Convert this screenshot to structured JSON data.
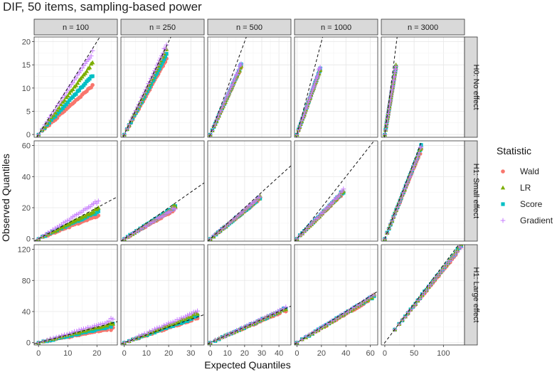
{
  "chart_data": {
    "type": "scatter",
    "title": "DIF, 50 items, sampling-based power",
    "xlabel": "Expected Quantiles",
    "ylabel": "Observed Quantiles",
    "legend": {
      "title": "Statistic",
      "position": "right",
      "entries": [
        {
          "name": "Wald",
          "color": "#F8766D",
          "shape": "circle"
        },
        {
          "name": "LR",
          "color": "#7CAE00",
          "shape": "triangle"
        },
        {
          "name": "Score",
          "color": "#00BFC4",
          "shape": "square"
        },
        {
          "name": "Gradient",
          "color": "#C77CFF",
          "shape": "plus"
        }
      ]
    },
    "columns": [
      {
        "label": "n = 100",
        "xlim": [
          -1.5,
          27
        ],
        "xticks": [
          0,
          10,
          20
        ],
        "ylims": [
          [
            -0.6,
            21
          ],
          [
            -1.5,
            63
          ],
          [
            -3,
            126
          ]
        ],
        "xmax": [
          18.5,
          20.5,
          25.5
        ],
        "wald_slope": [
          0.57,
          0.74,
          0.72
        ],
        "lr_slope": [
          0.83,
          0.92,
          0.96
        ],
        "score_slope": [
          0.69,
          0.86,
          0.84
        ],
        "grad_slope": [
          0.95,
          1.18,
          1.12
        ]
      },
      {
        "label": "n = 250",
        "xlim": [
          -1.5,
          36
        ],
        "xticks": [
          0,
          10,
          20,
          30
        ],
        "ylims": [
          [
            -0.6,
            21
          ],
          [
            -1.5,
            63
          ],
          [
            -3,
            126
          ]
        ],
        "xmax": [
          19.0,
          23.0,
          33.0
        ],
        "wald_slope": [
          0.85,
          0.82,
          0.95
        ],
        "lr_slope": [
          0.97,
          0.88,
          1.12
        ],
        "score_slope": [
          0.9,
          0.9,
          1.0
        ],
        "grad_slope": [
          1.0,
          0.85,
          1.22
        ]
      },
      {
        "label": "n = 500",
        "xlim": [
          -1.5,
          47
        ],
        "xticks": [
          0,
          10,
          20,
          30,
          40
        ],
        "ylims": [
          [
            -0.6,
            21
          ],
          [
            -1.5,
            63
          ],
          [
            -3,
            126
          ]
        ],
        "xmax": [
          18.0,
          29.0,
          44.0
        ],
        "wald_slope": [
          0.8,
          0.88,
          0.94
        ],
        "lr_slope": [
          0.82,
          0.92,
          1.0
        ],
        "score_slope": [
          0.82,
          0.9,
          0.98
        ],
        "grad_slope": [
          0.84,
          0.93,
          1.02
        ]
      },
      {
        "label": "n = 1000",
        "xlim": [
          -2,
          66
        ],
        "xticks": [
          0,
          20,
          40,
          60
        ],
        "ylims": [
          [
            -0.6,
            21
          ],
          [
            -1.5,
            63
          ],
          [
            -3,
            126
          ]
        ],
        "xmax": [
          19.0,
          38.0,
          63.0
        ],
        "wald_slope": [
          0.73,
          0.78,
          0.92
        ],
        "lr_slope": [
          0.74,
          0.8,
          0.95
        ],
        "score_slope": [
          0.74,
          0.8,
          0.95
        ],
        "grad_slope": [
          0.75,
          0.81,
          0.97
        ]
      },
      {
        "label": "n = 3000",
        "xlim": [
          -6,
          136
        ],
        "xticks": [
          0,
          50,
          100
        ],
        "ylims": [
          [
            -0.6,
            21
          ],
          [
            -1.5,
            63
          ],
          [
            -3,
            126
          ]
        ],
        "xmin": [
          0,
          0,
          17
        ],
        "xmax": [
          19.0,
          62.0,
          130.0
        ],
        "wald_slope": [
          0.77,
          0.92,
          0.92
        ],
        "lr_slope": [
          0.77,
          0.95,
          0.95
        ],
        "score_slope": [
          0.77,
          0.95,
          0.95
        ],
        "grad_slope": [
          0.77,
          0.94,
          0.94
        ]
      }
    ],
    "rows": [
      {
        "label": "H0: No effect",
        "yticks": [
          0,
          5,
          10,
          15,
          20
        ],
        "ref_slope": 1.0
      },
      {
        "label": "H1: Small effect",
        "yticks": [
          0,
          20,
          40,
          60
        ],
        "ref_slope": 1.0
      },
      {
        "label": "H1: Large effect",
        "yticks": [
          0,
          40,
          80,
          120
        ],
        "ref_slope": 1.0
      }
    ],
    "reference_line": "y = x (dashed)",
    "grid": true
  }
}
